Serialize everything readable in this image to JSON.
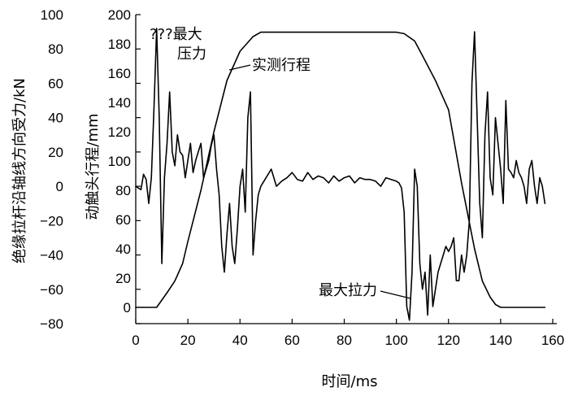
{
  "chart_data": {
    "type": "line",
    "title": "",
    "xlabel": "时间/ms",
    "ylabel_left": "绝缘拉杆沿轴线方向受力/kN",
    "ylabel_right": "动触头行程/mm",
    "xlim": [
      0,
      160
    ],
    "ylim_left": [
      -80,
      100
    ],
    "ylim_right": [
      0,
      200
    ],
    "x_ticks": [
      "0",
      "20",
      "40",
      "60",
      "80",
      "100",
      "120",
      "140",
      "160"
    ],
    "y_left_ticks": [
      "100",
      "80",
      "60",
      "40",
      "20",
      "0",
      "−20",
      "−40",
      "−60",
      "−80"
    ],
    "y_right_ticks": [
      "200",
      "180",
      "160",
      "140",
      "120",
      "100",
      "80",
      "60",
      "40",
      "20",
      "0"
    ],
    "annotations": {
      "max_pressure_line1": "???最大",
      "max_pressure_line2": "压力",
      "travel_label": "实测行程",
      "max_tension": "最大拉力"
    },
    "series": [
      {
        "axis": "left",
        "unit": "kN",
        "x": [
          0,
          2,
          3,
          4,
          5,
          6,
          7,
          8,
          9,
          10,
          11,
          12,
          13,
          14,
          15,
          16,
          17,
          18,
          19,
          20,
          21,
          22,
          23,
          24,
          25,
          26,
          27,
          28,
          29,
          30,
          31,
          32,
          33,
          34,
          35,
          36,
          37,
          38,
          39,
          40,
          41,
          42,
          43,
          44,
          45,
          46,
          47,
          48,
          50,
          52,
          54,
          56,
          58,
          60,
          62,
          64,
          66,
          68,
          70,
          72,
          74,
          76,
          78,
          80,
          82,
          84,
          86,
          88,
          90,
          92,
          94,
          96,
          98,
          100,
          101,
          102,
          103,
          104,
          105,
          106,
          107,
          108,
          109,
          110,
          111,
          112,
          113,
          114,
          115,
          116,
          117,
          118,
          119,
          120,
          121,
          122,
          123,
          124,
          125,
          126,
          127,
          128,
          129,
          130,
          131,
          132,
          133,
          134,
          135,
          136,
          137,
          138,
          139,
          140,
          141,
          142,
          143,
          144,
          145,
          146,
          147,
          148,
          149,
          150,
          151,
          152,
          153,
          154,
          155,
          156,
          157
        ],
        "y": [
          0,
          -2,
          7,
          4,
          -10,
          5,
          45,
          92,
          40,
          -45,
          5,
          25,
          55,
          20,
          12,
          30,
          20,
          18,
          5,
          15,
          25,
          8,
          15,
          20,
          25,
          5,
          10,
          15,
          24,
          30,
          10,
          -5,
          -35,
          -50,
          -28,
          -10,
          -35,
          -45,
          -25,
          0,
          10,
          -15,
          40,
          55,
          -40,
          -20,
          -5,
          0,
          5,
          10,
          0,
          3,
          5,
          8,
          4,
          3,
          8,
          4,
          6,
          5,
          2,
          6,
          3,
          5,
          6,
          2,
          5,
          4,
          4,
          3,
          0,
          5,
          4,
          3,
          2,
          -1,
          -15,
          -70,
          -78,
          -50,
          10,
          0,
          -45,
          -60,
          -50,
          -75,
          -40,
          -70,
          -60,
          -50,
          -45,
          -40,
          -35,
          -38,
          -35,
          -30,
          -55,
          -55,
          -40,
          -50,
          -40,
          -20,
          60,
          90,
          40,
          -10,
          -30,
          30,
          55,
          5,
          -5,
          40,
          25,
          10,
          -10,
          50,
          10,
          8,
          5,
          15,
          8,
          5,
          0,
          -10,
          10,
          15,
          0,
          -10,
          5,
          0,
          -10
        ]
      },
      {
        "name": "实测行程",
        "axis": "right",
        "unit": "mm",
        "x": [
          0,
          8,
          10,
          12,
          15,
          18,
          20,
          25,
          30,
          35,
          40,
          45,
          48,
          50,
          55,
          60,
          70,
          80,
          90,
          100,
          103,
          107,
          110,
          115,
          120,
          125,
          130,
          133,
          136,
          138,
          140,
          145,
          150,
          157
        ],
        "y": [
          0,
          0,
          5,
          10,
          18,
          30,
          45,
          80,
          120,
          155,
          175,
          185,
          188,
          188,
          188,
          188,
          188,
          188,
          188,
          188,
          187,
          182,
          172,
          155,
          135,
          85,
          40,
          18,
          7,
          2,
          0,
          0,
          0,
          0
        ]
      }
    ]
  }
}
